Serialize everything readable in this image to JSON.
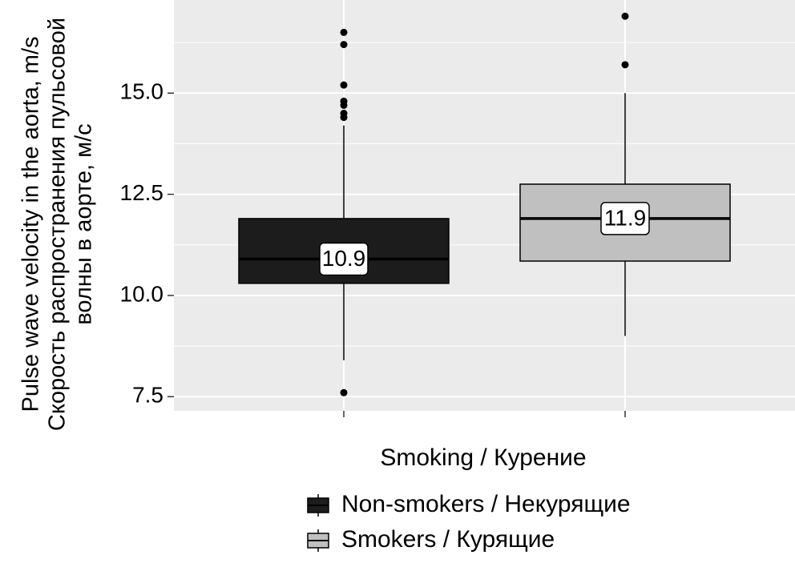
{
  "chart_data": {
    "type": "box",
    "xlabel": "Smoking / Курение",
    "ylabel_lines": [
      "Pulse wave velocity in the aorta, m/s",
      "Скорость распространения пульсовой",
      "волны в аорте, м/с"
    ],
    "y_ticks": [
      "7.5",
      "10.0",
      "12.5",
      "15.0"
    ],
    "y_tick_values": [
      7.5,
      10.0,
      12.5,
      15.0
    ],
    "ylim": [
      7.15,
      17.3
    ],
    "grid": true,
    "legend_position": "bottom",
    "series": [
      {
        "name": "Non-smokers / Некурящие",
        "fill": "#1c1c1c",
        "label_value": "10.9",
        "whisker_low": 8.4,
        "q1": 10.3,
        "median": 10.9,
        "q3": 11.9,
        "whisker_high": 14.2,
        "outliers": [
          7.6,
          14.4,
          14.5,
          14.7,
          14.8,
          15.2,
          16.2,
          16.5
        ]
      },
      {
        "name": "Smokers / Курящие",
        "fill": "#c0c0c0",
        "label_value": "11.9",
        "whisker_low": 9.0,
        "q1": 10.85,
        "median": 11.9,
        "q3": 12.75,
        "whisker_high": 15.0,
        "outliers": [
          15.7,
          16.9
        ]
      }
    ]
  }
}
